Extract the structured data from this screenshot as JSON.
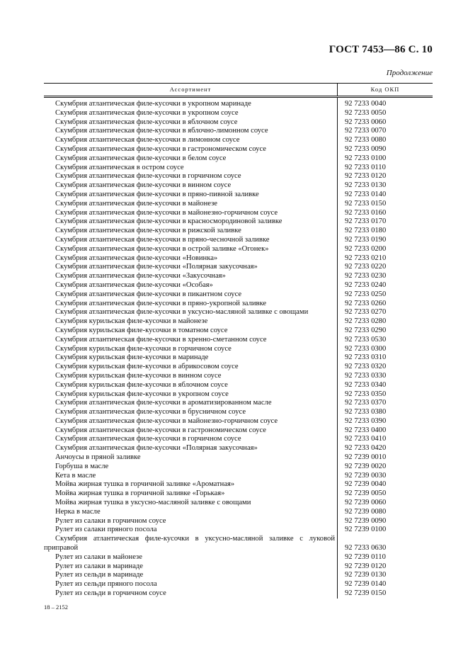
{
  "header": {
    "title": "ГОСТ 7453—86 С. 10",
    "continuation": "Продолжение"
  },
  "table": {
    "columns": [
      "Ассортимент",
      "Код ОКП"
    ],
    "rows": [
      {
        "name": "Скумбрия атлантическая филе-кусочки в укропном маринаде",
        "code": "92 7233 0040"
      },
      {
        "name": "Скумбрия атлантическая филе-кусочки в укропном соусе",
        "code": "92 7233 0050"
      },
      {
        "name": "Скумбрия атлантическая филе-кусочки в яблочном соусе",
        "code": "92 7233 0060"
      },
      {
        "name": "Скумбрия атлантическая филе-кусочки в яблочно-лимонном соусе",
        "code": "92 7233 0070"
      },
      {
        "name": "Скумбрия атлантическая филе-кусочки в лимонном соусе",
        "code": "92 7233 0080"
      },
      {
        "name": "Скумбрия атлантическая филе-кусочки в гастрономическом соусе",
        "code": "92 7233 0090"
      },
      {
        "name": "Скумбрия атлантическая филе-кусочки в белом соусе",
        "code": "92 7233 0100"
      },
      {
        "name": "Скумбрия атлантическая в остром соусе",
        "code": "92 7233 0110"
      },
      {
        "name": "Скумбрия атлантическая филе-кусочки в горчичном соусе",
        "code": "92 7233 0120"
      },
      {
        "name": "Скумбрия атлантическая филе-кусочки в винном соусе",
        "code": "92 7233 0130"
      },
      {
        "name": "Скумбрия атлантическая филе-кусочки в пряно-пивной заливке",
        "code": "92 7233 0140"
      },
      {
        "name": "Скумбрия атлантическая филе-кусочки в майонезе",
        "code": "92 7233 0150"
      },
      {
        "name": "Скумбрия атлантическая филе-кусочки в майонезно-горчичном соусе",
        "code": "92 7233 0160"
      },
      {
        "name": "Скумбрия атлантическая филе-кусочки в красносмородиновой заливке",
        "code": "92 7233 0170"
      },
      {
        "name": "Скумбрия атлантическая филе-кусочки в рижской заливке",
        "code": "92 7233 0180"
      },
      {
        "name": "Скумбрия атлантическая филе-кусочки в пряно-чесночной заливке",
        "code": "92 7233 0190"
      },
      {
        "name": "Скумбрия атлантическая филе-кусочки в острой заливке «Огонек»",
        "code": "92 7233 0200"
      },
      {
        "name": "Скумбрия атлантическая филе-кусочки «Новинка»",
        "code": "92 7233 0210"
      },
      {
        "name": "Скумбрия атлантическая филе-кусочки «Полярная закусочная»",
        "code": "92 7233 0220"
      },
      {
        "name": "Скумбрия атлантическая филе-кусочки «Закусочная»",
        "code": "92 7233 0230"
      },
      {
        "name": "Скумбрия атлантическая филе-кусочки «Особая»",
        "code": "92 7233 0240"
      },
      {
        "name": "Скумбрия атлантическая филе-кусочки в пикантном соусе",
        "code": "92 7233 0250"
      },
      {
        "name": "Скумбрия атлантическая филе-кусочки в пряно-укропной заливке",
        "code": "92 7233 0260"
      },
      {
        "name": "Скумбрия атлантическая филе-кусочки в уксусно-масляной заливке с овощами",
        "code": "92 7233 0270"
      },
      {
        "name": "Скумбрия курильская филе-кусочки в майонезе",
        "code": "92 7233 0280"
      },
      {
        "name": "Скумбрия курильская филе-кусочки в томатном соусе",
        "code": "92 7233 0290"
      },
      {
        "name": "Скумбрия атлантическая филе-кусочки в хренно-сметанном соусе",
        "code": "92 7233 0530"
      },
      {
        "name": "Скумбрия курильская филе-кусочки в горчичном соусе",
        "code": "92 7233 0300"
      },
      {
        "name": "Скумбрия курильская филе-кусочки в маринаде",
        "code": "92 7233 0310"
      },
      {
        "name": "Скумбрия курильская филе-кусочки в абрикосовом соусе",
        "code": "92 7233 0320"
      },
      {
        "name": "Скумбрия курильская филе-кусочки в винном соусе",
        "code": "92 7233 0330"
      },
      {
        "name": "Скумбрия курильская филе-кусочки в яблочном соусе",
        "code": "92 7233 0340"
      },
      {
        "name": "Скумбрия курильская филе-кусочки в укропном соусе",
        "code": "92 7233 0350"
      },
      {
        "name": "Скумбрия атлантическая филе-кусочки в ароматизированном масле",
        "code": "92 7233 0370"
      },
      {
        "name": "Скумбрия атлантическая филе-кусочки в брусничном соусе",
        "code": "92 7233 0380"
      },
      {
        "name": "Скумбрия атлантическая филе-кусочки в майонезно-горчичном соусе",
        "code": "92 7233 0390"
      },
      {
        "name": "Скумбрия атлантическая филе-кусочки в гастрономическом соусе",
        "code": "92 7233 0400"
      },
      {
        "name": "Скумбрия атлантическая филе-кусочки в горчичном соусе",
        "code": "92 7233 0410"
      },
      {
        "name": "Скумбрия атлантическая филе-кусочки «Полярная закусочная»",
        "code": "92 7233 0420"
      },
      {
        "name": "Анчоусы в пряной заливке",
        "code": "92 7239 0010"
      },
      {
        "name": "Горбуша в масле",
        "code": "92 7239 0020"
      },
      {
        "name": "Кета в масле",
        "code": "92 7239 0030"
      },
      {
        "name": "Мойва жирная тушка в горчичной заливке «Ароматная»",
        "code": "92 7239 0040"
      },
      {
        "name": "Мойва жирная тушка в горчичной заливке «Горькая»",
        "code": "92 7239 0050"
      },
      {
        "name": "Мойва жирная тушка в уксусно-масляной заливке с овощами",
        "code": "92 7239 0060"
      },
      {
        "name": "Нерка в масле",
        "code": "92 7239 0080"
      },
      {
        "name": "Рулет из салаки в горчичном соусе",
        "code": "92 7239 0090"
      },
      {
        "name": "Рулет из салаки пряного посола",
        "code": "92 7239 0100"
      },
      {
        "name": "Скумбрия атлантическая филе-кусочки в уксусно-масляной заливке с луковой приправой",
        "code": "92 7233 0630"
      },
      {
        "name": "Рулет из салаки в майонезе",
        "code": "92 7239 0110"
      },
      {
        "name": "Рулет из салаки в маринаде",
        "code": "92 7239 0120"
      },
      {
        "name": "Рулет из сельди в маринаде",
        "code": "92 7239 0130"
      },
      {
        "name": "Рулет из сельди пряного посола",
        "code": "92 7239 0140"
      },
      {
        "name": "Рулет из сельди в горчичном соусе",
        "code": "92 7239 0150"
      }
    ]
  },
  "footer": {
    "print_code": "18 – 2152"
  }
}
